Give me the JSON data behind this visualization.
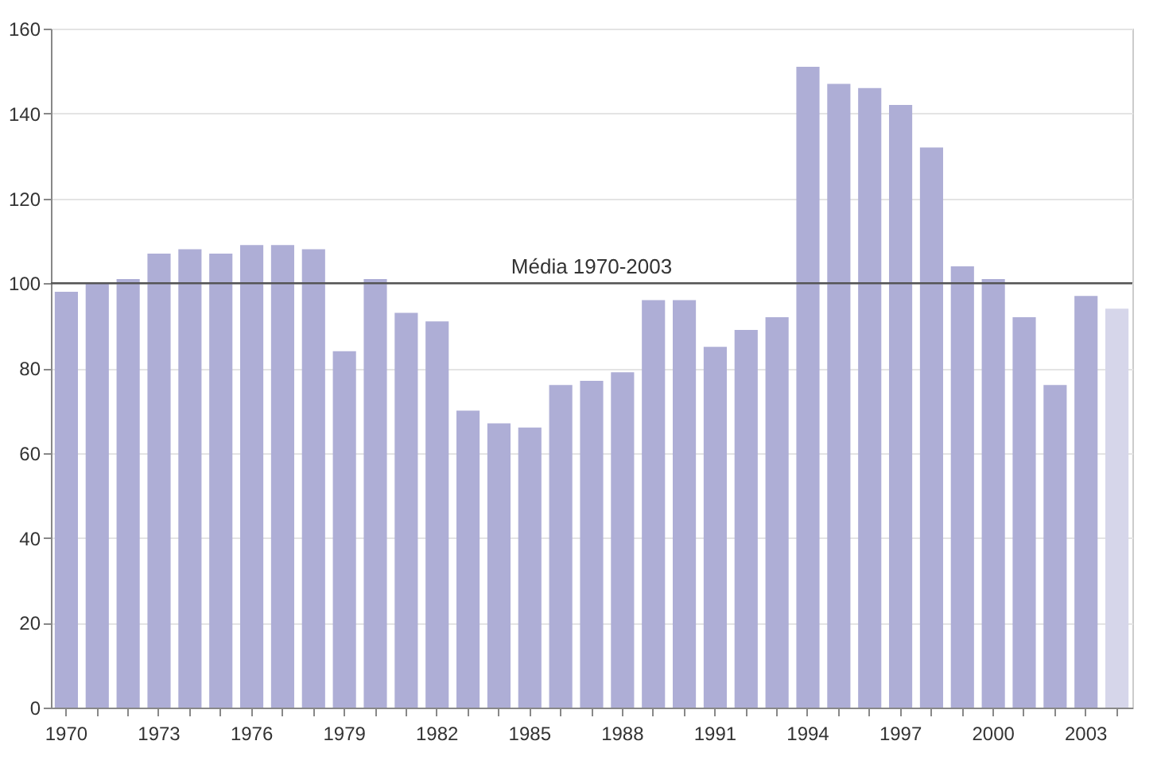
{
  "chart_data": {
    "type": "bar",
    "categories": [
      "1970",
      null,
      null,
      "1973",
      null,
      null,
      "1976",
      null,
      null,
      "1979",
      null,
      null,
      "1982",
      null,
      null,
      "1985",
      null,
      null,
      "1988",
      null,
      null,
      "1991",
      null,
      null,
      "1994",
      null,
      null,
      "1997",
      null,
      null,
      "2000",
      null,
      null,
      "2003",
      null
    ],
    "values": [
      98,
      100,
      101,
      107,
      108,
      107,
      109,
      109,
      108,
      84,
      101,
      93,
      91,
      70,
      67,
      66,
      76,
      77,
      79,
      96,
      96,
      85,
      89,
      92,
      151,
      147,
      146,
      142,
      132,
      104,
      101,
      92,
      76,
      97,
      94
    ],
    "colors": [
      "#aeaed6",
      "#aeaed6",
      "#aeaed6",
      "#aeaed6",
      "#aeaed6",
      "#aeaed6",
      "#aeaed6",
      "#aeaed6",
      "#aeaed6",
      "#aeaed6",
      "#aeaed6",
      "#aeaed6",
      "#aeaed6",
      "#aeaed6",
      "#aeaed6",
      "#aeaed6",
      "#aeaed6",
      "#aeaed6",
      "#aeaed6",
      "#aeaed6",
      "#aeaed6",
      "#aeaed6",
      "#aeaed6",
      "#aeaed6",
      "#aeaed6",
      "#aeaed6",
      "#aeaed6",
      "#aeaed6",
      "#aeaed6",
      "#aeaed6",
      "#aeaed6",
      "#aeaed6",
      "#aeaed6",
      "#aeaed6",
      "#d6d6ea"
    ],
    "ylim": [
      0,
      160
    ],
    "yticks": [
      0,
      20,
      40,
      60,
      80,
      100,
      120,
      140,
      160
    ],
    "grid": "y",
    "ref_lines": [
      {
        "axis": "y",
        "value": 100,
        "label": "Média 1970-2003",
        "color": "#555555"
      }
    ]
  }
}
